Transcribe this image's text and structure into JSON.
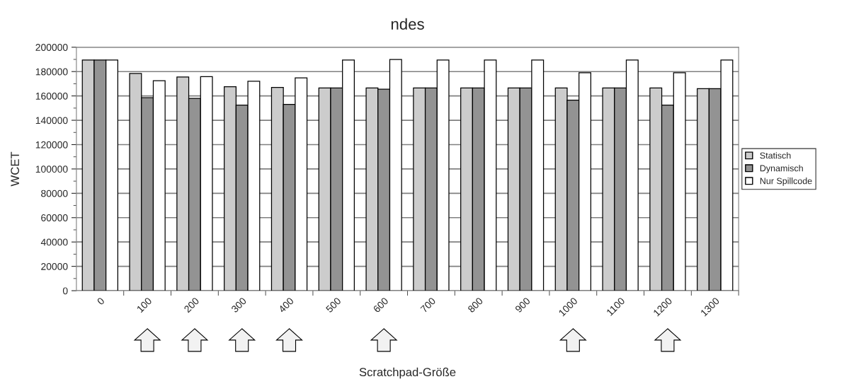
{
  "chart_data": {
    "type": "bar",
    "title": "ndes",
    "xlabel": "Scratchpad-Größe",
    "ylabel": "WCET",
    "categories": [
      "0",
      "100",
      "200",
      "300",
      "400",
      "500",
      "600",
      "700",
      "800",
      "900",
      "1000",
      "1100",
      "1200",
      "1300"
    ],
    "series": [
      {
        "name": "Statisch",
        "color": "#cccccc",
        "values": [
          189500,
          178500,
          175500,
          167500,
          167000,
          166500,
          166500,
          166500,
          166500,
          166500,
          166500,
          166500,
          166500,
          166000
        ]
      },
      {
        "name": "Dynamisch",
        "color": "#939393",
        "values": [
          189500,
          158500,
          158000,
          152500,
          153000,
          166500,
          165500,
          166500,
          166500,
          166500,
          156500,
          166500,
          152500,
          166000
        ]
      },
      {
        "name": "Nur Spillcode",
        "color": "#ffffff",
        "values": [
          189500,
          172500,
          175800,
          172000,
          174800,
          189500,
          190000,
          189500,
          189500,
          189500,
          179000,
          189500,
          179000,
          189500
        ]
      }
    ],
    "ylim": [
      0,
      200000
    ],
    "yticks": [
      0,
      20000,
      40000,
      60000,
      80000,
      100000,
      120000,
      140000,
      160000,
      180000,
      200000
    ],
    "grid": "y",
    "legend": "right"
  }
}
